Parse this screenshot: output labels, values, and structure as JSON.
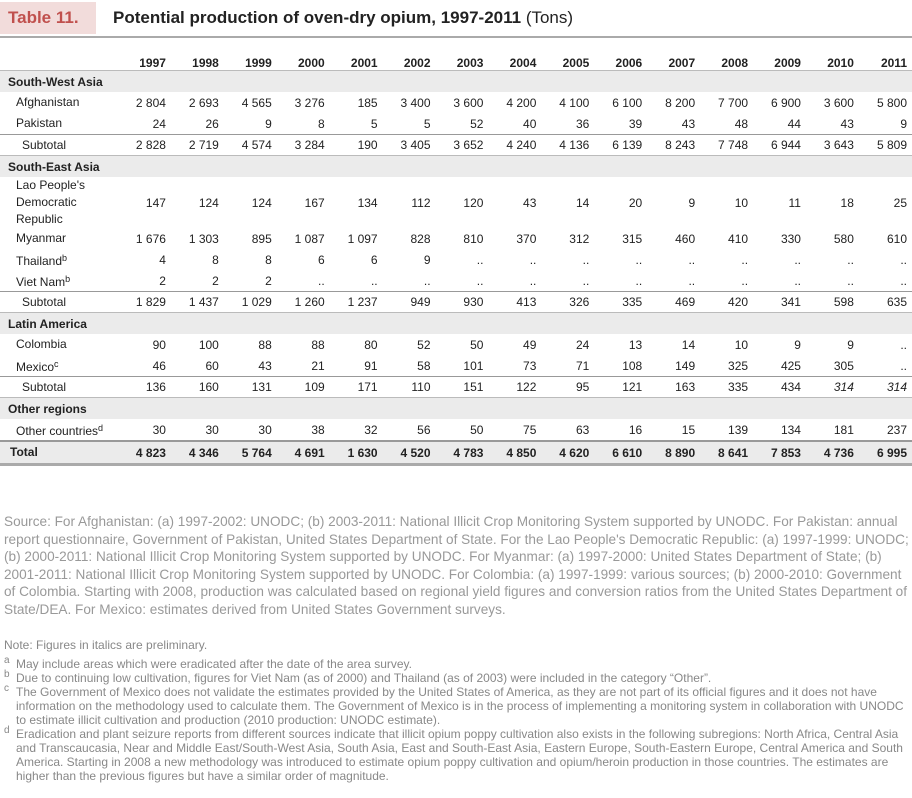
{
  "header": {
    "label": "Table 11.",
    "title": "Potential production of oven-dry opium, 1997-2011",
    "unit": "(Tons)"
  },
  "table": {
    "columns": [
      "1997",
      "1998",
      "1999",
      "2000",
      "2001",
      "2002",
      "2003",
      "2004",
      "2005",
      "2006",
      "2007",
      "2008",
      "2009",
      "2010",
      "2011"
    ],
    "sections": [
      {
        "name": "South-West Asia",
        "rows": [
          {
            "label": "Afghanistan",
            "cells": [
              "2 804",
              "2 693",
              "4 565",
              "3 276",
              "185",
              "3 400",
              "3 600",
              "4 200",
              "4 100",
              "6 100",
              "8 200",
              "7 700",
              "6 900",
              "3 600",
              "5 800"
            ]
          },
          {
            "label": "Pakistan",
            "cells": [
              "24",
              "26",
              "9",
              "8",
              "5",
              "5",
              "52",
              "40",
              "36",
              "39",
              "43",
              "48",
              "44",
              "43",
              "9"
            ]
          },
          {
            "label": "Subtotal",
            "subtotal": true,
            "cells": [
              "2 828",
              "2 719",
              "4 574",
              "3 284",
              "190",
              "3 405",
              "3 652",
              "4 240",
              "4 136",
              "6 139",
              "8 243",
              "7 748",
              "6 944",
              "3 643",
              "5 809"
            ]
          }
        ]
      },
      {
        "name": "South-East Asia",
        "rows": [
          {
            "label": "Lao People's Democratic Republic",
            "cells": [
              "147",
              "124",
              "124",
              "167",
              "134",
              "112",
              "120",
              "43",
              "14",
              "20",
              "9",
              "10",
              "11",
              "18",
              "25"
            ]
          },
          {
            "label": "Myanmar",
            "cells": [
              "1 676",
              "1 303",
              "895",
              "1 087",
              "1 097",
              "828",
              "810",
              "370",
              "312",
              "315",
              "460",
              "410",
              "330",
              "580",
              "610"
            ]
          },
          {
            "label": "Thailand",
            "note": "b",
            "cells": [
              "4",
              "8",
              "8",
              "6",
              "6",
              "9",
              "..",
              "..",
              "..",
              "..",
              "..",
              "..",
              "..",
              "..",
              ".."
            ]
          },
          {
            "label": "Viet Nam",
            "note": "b",
            "cells": [
              "2",
              "2",
              "2",
              "..",
              "..",
              "..",
              "..",
              "..",
              "..",
              "..",
              "..",
              "..",
              "..",
              "..",
              ".."
            ]
          },
          {
            "label": "Subtotal",
            "subtotal": true,
            "cells": [
              "1 829",
              "1 437",
              "1 029",
              "1 260",
              "1 237",
              "949",
              "930",
              "413",
              "326",
              "335",
              "469",
              "420",
              "341",
              "598",
              "635"
            ]
          }
        ]
      },
      {
        "name": "Latin America",
        "rows": [
          {
            "label": "Colombia",
            "cells": [
              "90",
              "100",
              "88",
              "88",
              "80",
              "52",
              "50",
              "49",
              "24",
              "13",
              "14",
              "10",
              "9",
              "9",
              ".."
            ]
          },
          {
            "label": "Mexico",
            "note": "c",
            "cells": [
              "46",
              "60",
              "43",
              "21",
              "91",
              "58",
              "101",
              "73",
              "71",
              "108",
              "149",
              "325",
              "425",
              "305",
              ".."
            ]
          },
          {
            "label": "Subtotal",
            "subtotal": true,
            "italic_cells": [
              13,
              14
            ],
            "cells": [
              "136",
              "160",
              "131",
              "109",
              "171",
              "110",
              "151",
              "122",
              "95",
              "121",
              "163",
              "335",
              "434",
              "314",
              "314"
            ]
          }
        ]
      },
      {
        "name": "Other regions",
        "rows": [
          {
            "label": "Other countries",
            "note": "d",
            "cells": [
              "30",
              "30",
              "30",
              "38",
              "32",
              "56",
              "50",
              "75",
              "63",
              "16",
              "15",
              "139",
              "134",
              "181",
              "237"
            ]
          }
        ]
      }
    ],
    "total": {
      "label": "Total",
      "cells": [
        "4 823",
        "4 346",
        "5 764",
        "4 691",
        "1 630",
        "4 520",
        "4 783",
        "4 850",
        "4 620",
        "6 610",
        "8 890",
        "8 641",
        "7 853",
        "4 736",
        "6 995"
      ]
    }
  },
  "source": "Source: For Afghanistan: (a) 1997-2002: UNODC; (b) 2003-2011: National Illicit Crop Monitoring System supported by UNODC. For Pakistan: annual report questionnaire, Government of Pakistan, United States Department of State. For the Lao People's Democratic Republic: (a) 1997-1999: UNODC; (b) 2000-2011: National Illicit Crop Monitoring System supported by UNODC. For Myanmar: (a) 1997-2000: United States Department of State; (b) 2001-2011: National Illicit Crop Monitoring System supported by UNODC. For Colombia: (a) 1997-1999: various sources; (b) 2000-2010: Government of Colombia. Starting with 2008, production was calculated based on regional yield figures and conversion ratios from the United States Department of State/DEA. For Mexico: estimates derived from United States Government surveys.",
  "note": "Note: Figures in italics are preliminary.",
  "footnotes": [
    {
      "mark": "a",
      "text": "May include areas which were eradicated after the date of the area survey."
    },
    {
      "mark": "b",
      "text": "Due to continuing low cultivation, figures for Viet Nam (as of 2000) and Thailand (as of 2003) were included in the category “Other”."
    },
    {
      "mark": "c",
      "text": "The Government of Mexico does not validate the estimates provided by the United States of America, as they are not part of its official figures and it does not have information on the methodology used to calculate them. The Government of Mexico is in the process of implementing a monitoring system in collaboration with UNODC to estimate illicit cultivation and production (2010 production: UNODC estimate)."
    },
    {
      "mark": "d",
      "text": "Eradication and plant seizure reports from different sources indicate that illicit opium poppy cultivation also exists in the following subregions: North Africa, Central Asia and Transcaucasia, Near and Middle East/South-West Asia, South Asia, East and South-East Asia, Eastern Europe, South-Eastern Europe, Central America and South America. Starting in 2008 a new methodology was introduced to estimate opium poppy cultivation and opium/heroin production in those countries. The estimates are higher than the previous figures but have a similar order of magnitude."
    }
  ]
}
